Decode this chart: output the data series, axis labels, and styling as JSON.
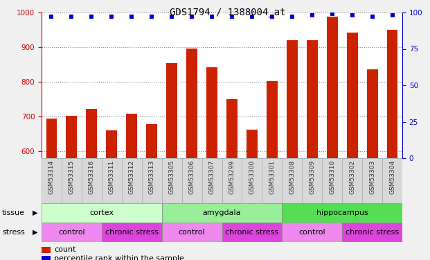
{
  "title": "GDS1794 / 1388004_at",
  "samples": [
    "GSM53314",
    "GSM53315",
    "GSM53316",
    "GSM53311",
    "GSM53312",
    "GSM53313",
    "GSM53305",
    "GSM53306",
    "GSM53307",
    "GSM53299",
    "GSM53300",
    "GSM53301",
    "GSM53308",
    "GSM53309",
    "GSM53310",
    "GSM53302",
    "GSM53303",
    "GSM53304"
  ],
  "counts": [
    695,
    703,
    722,
    660,
    708,
    678,
    855,
    897,
    843,
    750,
    663,
    803,
    920,
    920,
    988,
    943,
    836,
    950
  ],
  "percentiles": [
    97,
    97,
    97,
    97,
    97,
    97,
    97,
    97,
    97,
    97,
    97,
    97,
    97,
    98,
    99,
    98,
    97,
    98
  ],
  "ylim_left": [
    580,
    1000
  ],
  "ylim_right": [
    0,
    100
  ],
  "yticks_left": [
    600,
    700,
    800,
    900,
    1000
  ],
  "yticks_right": [
    0,
    25,
    50,
    75,
    100
  ],
  "bar_color": "#cc2200",
  "dot_color": "#0000cc",
  "tissue_groups": [
    {
      "label": "cortex",
      "start": 0,
      "end": 6,
      "color": "#ccffcc"
    },
    {
      "label": "amygdala",
      "start": 6,
      "end": 12,
      "color": "#99ee99"
    },
    {
      "label": "hippocampus",
      "start": 12,
      "end": 18,
      "color": "#55dd55"
    }
  ],
  "stress_groups": [
    {
      "label": "control",
      "start": 0,
      "end": 3,
      "color": "#ee88ee"
    },
    {
      "label": "chronic stress",
      "start": 3,
      "end": 6,
      "color": "#dd44dd"
    },
    {
      "label": "control",
      "start": 6,
      "end": 9,
      "color": "#ee88ee"
    },
    {
      "label": "chronic stress",
      "start": 9,
      "end": 12,
      "color": "#dd44dd"
    },
    {
      "label": "control",
      "start": 12,
      "end": 15,
      "color": "#ee88ee"
    },
    {
      "label": "chronic stress",
      "start": 15,
      "end": 18,
      "color": "#dd44dd"
    }
  ],
  "tissue_label": "tissue",
  "stress_label": "stress",
  "legend_count": "count",
  "legend_pct": "percentile rank within the sample",
  "fig_bg": "#f0f0f0",
  "plot_bg": "#ffffff",
  "xticklabel_bg": "#dddddd",
  "border_color": "#aaaaaa"
}
